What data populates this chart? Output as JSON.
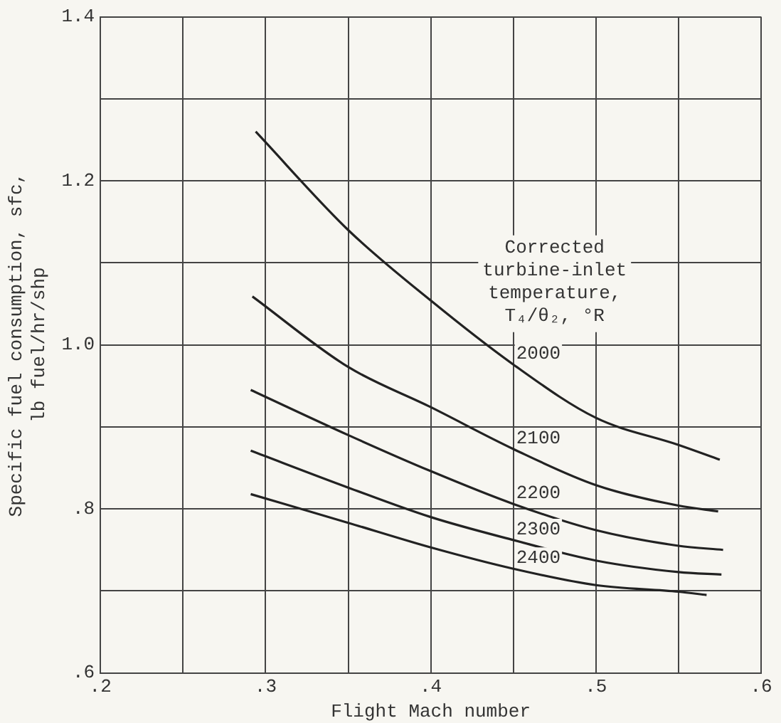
{
  "chart_data": {
    "type": "line",
    "xlabel": "Flight Mach number",
    "ylabel": "Specific fuel consumption, sfc, lb fuel/hr/shp",
    "annotations": [
      "Corrected turbine-inlet temperature, T₄/θ₂, °R"
    ],
    "xlim": [
      0.2,
      0.6
    ],
    "xticks": [
      {
        "value": 0.2,
        "label": ".2"
      },
      {
        "value": 0.25,
        "label": null
      },
      {
        "value": 0.3,
        "label": ".3"
      },
      {
        "value": 0.35,
        "label": null
      },
      {
        "value": 0.4,
        "label": ".4"
      },
      {
        "value": 0.45,
        "label": null
      },
      {
        "value": 0.5,
        "label": ".5"
      },
      {
        "value": 0.55,
        "label": null
      },
      {
        "value": 0.6,
        "label": ".6"
      }
    ],
    "ylim": [
      0.6,
      1.4
    ],
    "yticks": [
      {
        "value": 0.6,
        "label": ".6"
      },
      {
        "value": 0.7,
        "label": null
      },
      {
        "value": 0.8,
        "label": ".8"
      },
      {
        "value": 0.9,
        "label": null
      },
      {
        "value": 1.0,
        "label": "1.0"
      },
      {
        "value": 1.1,
        "label": null
      },
      {
        "value": 1.2,
        "label": "1.2"
      },
      {
        "value": 1.3,
        "label": null
      },
      {
        "value": 1.4,
        "label": "1.4"
      }
    ],
    "grid": true,
    "legend": false,
    "marker": "none",
    "line_style": "solid",
    "series": [
      {
        "name": "2000",
        "color": "#222222",
        "x": [
          0.294,
          0.35,
          0.4,
          0.45,
          0.5,
          0.55,
          0.575
        ],
        "values": [
          1.26,
          1.14,
          1.054,
          0.976,
          0.911,
          0.878,
          0.86
        ]
      },
      {
        "name": "2100",
        "color": "#222222",
        "x": [
          0.292,
          0.35,
          0.4,
          0.45,
          0.5,
          0.55,
          0.574
        ],
        "values": [
          1.059,
          0.973,
          0.924,
          0.873,
          0.829,
          0.804,
          0.797
        ]
      },
      {
        "name": "2200",
        "color": "#222222",
        "x": [
          0.291,
          0.35,
          0.4,
          0.45,
          0.5,
          0.55,
          0.577
        ],
        "values": [
          0.945,
          0.89,
          0.846,
          0.806,
          0.774,
          0.755,
          0.75
        ]
      },
      {
        "name": "2300",
        "color": "#222222",
        "x": [
          0.291,
          0.35,
          0.4,
          0.45,
          0.5,
          0.55,
          0.576
        ],
        "values": [
          0.871,
          0.826,
          0.79,
          0.762,
          0.737,
          0.723,
          0.72
        ]
      },
      {
        "name": "2400",
        "color": "#222222",
        "x": [
          0.291,
          0.35,
          0.4,
          0.45,
          0.5,
          0.55,
          0.567
        ],
        "values": [
          0.818,
          0.783,
          0.753,
          0.727,
          0.707,
          0.699,
          0.695
        ]
      }
    ]
  }
}
